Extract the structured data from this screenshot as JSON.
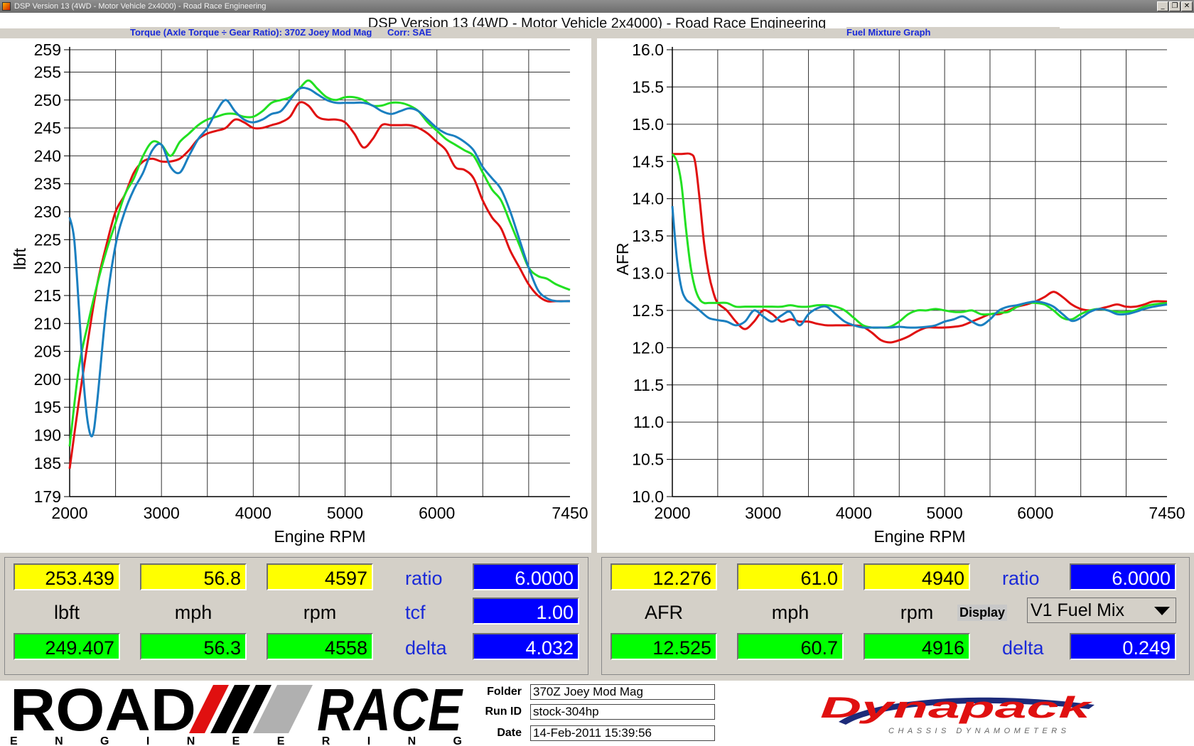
{
  "window": {
    "title": "DSP Version 13 (4WD - Motor Vehicle 2x4000) - Road Race Engineering",
    "heading": "DSP Version 13 (4WD - Motor Vehicle 2x4000) - Road Race Engineering",
    "minimize": "_",
    "restore": "❐",
    "close": "✕"
  },
  "colors": {
    "red": "#e01010",
    "green": "#22e022",
    "blue": "#1a7fc0",
    "panel": "#d4d0c8"
  },
  "chart_data": [
    {
      "type": "line",
      "title": "Torque (Axle Torque ÷ Gear Ratio): 370Z Joey Mod Mag",
      "subtitle": "Corr: SAE",
      "xlabel": "Engine RPM",
      "ylabel": "lbft",
      "xlim": [
        2000,
        7450
      ],
      "ylim": [
        179,
        259
      ],
      "xticks": [
        2000,
        3000,
        4000,
        5000,
        6000,
        7450
      ],
      "yticks": [
        179,
        185,
        190,
        195,
        200,
        205,
        210,
        215,
        220,
        225,
        230,
        235,
        240,
        245,
        250,
        255,
        259
      ],
      "grid": true,
      "legend": "none",
      "series": [
        {
          "color": "#e01010",
          "x": [
            2000,
            2100,
            2200,
            2300,
            2400,
            2500,
            2600,
            2700,
            2800,
            2900,
            3000,
            3100,
            3200,
            3300,
            3400,
            3500,
            3600,
            3700,
            3800,
            3900,
            4000,
            4100,
            4200,
            4300,
            4400,
            4500,
            4600,
            4700,
            4800,
            4900,
            5000,
            5100,
            5200,
            5300,
            5400,
            5500,
            5600,
            5700,
            5800,
            5900,
            6000,
            6100,
            6200,
            6300,
            6400,
            6500,
            6600,
            6700,
            6800,
            6900,
            7000,
            7100,
            7200,
            7300,
            7450
          ],
          "y": [
            184,
            196,
            207,
            217,
            224,
            230,
            233,
            237,
            239,
            239.5,
            239,
            239,
            239.5,
            241,
            243,
            244,
            244.5,
            245,
            246.5,
            246,
            245,
            245,
            245.5,
            246,
            247,
            249.5,
            249,
            247,
            246.5,
            246.5,
            246,
            244,
            241.5,
            243,
            245.5,
            245.5,
            245.5,
            245.5,
            245,
            244,
            242.5,
            241,
            238,
            237.5,
            236,
            232,
            229,
            227,
            223,
            220,
            217,
            215,
            214,
            214,
            214
          ]
        },
        {
          "color": "#22e022",
          "x": [
            2000,
            2100,
            2200,
            2300,
            2400,
            2500,
            2600,
            2700,
            2800,
            2900,
            3000,
            3100,
            3200,
            3300,
            3400,
            3500,
            3600,
            3700,
            3800,
            3900,
            4000,
            4100,
            4200,
            4300,
            4400,
            4500,
            4600,
            4700,
            4800,
            4900,
            5000,
            5100,
            5200,
            5300,
            5400,
            5500,
            5600,
            5700,
            5800,
            5900,
            6000,
            6100,
            6200,
            6300,
            6400,
            6500,
            6600,
            6700,
            6800,
            6900,
            7000,
            7100,
            7200,
            7300,
            7450
          ],
          "y": [
            188,
            202,
            210,
            217,
            223,
            228,
            233,
            236,
            240,
            242.5,
            242,
            240,
            242.5,
            244,
            245.5,
            246.5,
            247,
            247.5,
            247.5,
            247,
            247,
            248,
            249.5,
            250,
            250.5,
            252,
            253.5,
            252,
            250.5,
            250,
            250.5,
            250.5,
            250,
            249,
            249,
            249.5,
            249.5,
            249,
            248,
            246,
            244.5,
            243,
            242,
            241,
            240,
            237,
            234,
            232,
            228,
            224,
            220,
            218.5,
            218,
            217,
            216
          ]
        },
        {
          "color": "#1a7fc0",
          "x": [
            2000,
            2050,
            2100,
            2150,
            2200,
            2250,
            2300,
            2400,
            2500,
            2600,
            2700,
            2800,
            2900,
            3000,
            3100,
            3200,
            3300,
            3400,
            3500,
            3600,
            3700,
            3800,
            3900,
            4000,
            4100,
            4200,
            4300,
            4400,
            4500,
            4600,
            4700,
            4800,
            4900,
            5000,
            5100,
            5200,
            5300,
            5400,
            5500,
            5600,
            5700,
            5800,
            5900,
            6000,
            6100,
            6200,
            6300,
            6400,
            6500,
            6600,
            6700,
            6800,
            6900,
            7000,
            7100,
            7200,
            7300,
            7450
          ],
          "y": [
            229,
            225,
            213,
            200,
            192,
            190,
            196,
            213,
            224,
            230,
            234,
            237,
            241,
            242,
            238,
            237,
            240,
            243,
            245,
            248,
            250,
            248,
            246.5,
            246,
            246.5,
            247.5,
            248,
            250,
            252,
            252,
            251,
            250,
            249.5,
            249.5,
            249.5,
            249.5,
            249,
            248,
            247.5,
            248,
            248.5,
            248,
            246.5,
            245,
            244,
            243.5,
            242.5,
            241,
            238,
            236,
            234,
            230,
            225,
            220,
            216,
            214.5,
            214,
            214
          ]
        }
      ]
    },
    {
      "type": "line",
      "title": "Fuel Mixture Graph",
      "xlabel": "Engine RPM",
      "ylabel": "AFR",
      "xlim": [
        2000,
        7450
      ],
      "ylim": [
        10.0,
        16.0
      ],
      "xticks": [
        2000,
        3000,
        4000,
        5000,
        6000,
        7450
      ],
      "yticks": [
        10.0,
        10.5,
        11.0,
        11.5,
        12.0,
        12.5,
        13.0,
        13.5,
        14.0,
        14.5,
        15.0,
        15.5,
        16.0
      ],
      "grid": true,
      "legend": "none",
      "series": [
        {
          "color": "#e01010",
          "x": [
            2000,
            2100,
            2200,
            2250,
            2300,
            2350,
            2400,
            2450,
            2500,
            2600,
            2700,
            2800,
            2900,
            3000,
            3100,
            3200,
            3300,
            3400,
            3500,
            3600,
            3700,
            3800,
            3900,
            4000,
            4100,
            4200,
            4300,
            4400,
            4500,
            4600,
            4700,
            4800,
            4900,
            5000,
            5100,
            5200,
            5300,
            5400,
            5500,
            5600,
            5700,
            5800,
            5900,
            6000,
            6100,
            6200,
            6300,
            6400,
            6500,
            6600,
            6700,
            6800,
            6900,
            7000,
            7100,
            7200,
            7300,
            7450
          ],
          "y": [
            14.6,
            14.6,
            14.6,
            14.5,
            14.0,
            13.4,
            13.0,
            12.75,
            12.6,
            12.5,
            12.35,
            12.25,
            12.35,
            12.5,
            12.45,
            12.35,
            12.38,
            12.35,
            12.35,
            12.32,
            12.3,
            12.3,
            12.3,
            12.3,
            12.28,
            12.2,
            12.1,
            12.07,
            12.1,
            12.15,
            12.22,
            12.27,
            12.27,
            12.27,
            12.28,
            12.3,
            12.35,
            12.4,
            12.45,
            12.45,
            12.5,
            12.55,
            12.58,
            12.62,
            12.68,
            12.75,
            12.68,
            12.58,
            12.52,
            12.5,
            12.52,
            12.55,
            12.58,
            12.55,
            12.55,
            12.58,
            12.62,
            12.62
          ]
        },
        {
          "color": "#22e022",
          "x": [
            2000,
            2050,
            2100,
            2150,
            2200,
            2250,
            2300,
            2350,
            2400,
            2500,
            2600,
            2700,
            2800,
            2900,
            3000,
            3100,
            3200,
            3300,
            3400,
            3500,
            3600,
            3700,
            3800,
            3900,
            4000,
            4100,
            4200,
            4300,
            4400,
            4500,
            4600,
            4700,
            4800,
            4900,
            5000,
            5100,
            5200,
            5300,
            5400,
            5500,
            5600,
            5700,
            5800,
            5900,
            6000,
            6100,
            6200,
            6300,
            6400,
            6500,
            6600,
            6700,
            6800,
            6900,
            7000,
            7100,
            7200,
            7300,
            7450
          ],
          "y": [
            14.6,
            14.5,
            14.2,
            13.6,
            13.1,
            12.8,
            12.65,
            12.6,
            12.6,
            12.6,
            12.6,
            12.55,
            12.55,
            12.55,
            12.55,
            12.55,
            12.55,
            12.57,
            12.55,
            12.55,
            12.57,
            12.57,
            12.55,
            12.5,
            12.4,
            12.3,
            12.27,
            12.27,
            12.28,
            12.35,
            12.45,
            12.5,
            12.5,
            12.52,
            12.5,
            12.48,
            12.48,
            12.5,
            12.45,
            12.45,
            12.47,
            12.48,
            12.55,
            12.6,
            12.6,
            12.58,
            12.5,
            12.4,
            12.38,
            12.45,
            12.5,
            12.52,
            12.5,
            12.48,
            12.48,
            12.5,
            12.55,
            12.58,
            12.6
          ]
        },
        {
          "color": "#1a7fc0",
          "x": [
            2000,
            2050,
            2100,
            2150,
            2200,
            2300,
            2400,
            2500,
            2600,
            2700,
            2800,
            2900,
            3000,
            3100,
            3200,
            3300,
            3400,
            3500,
            3600,
            3700,
            3800,
            3900,
            4000,
            4100,
            4200,
            4300,
            4400,
            4500,
            4600,
            4700,
            4800,
            4900,
            5000,
            5100,
            5200,
            5300,
            5400,
            5500,
            5600,
            5700,
            5800,
            5900,
            6000,
            6100,
            6200,
            6300,
            6400,
            6500,
            6600,
            6700,
            6800,
            6900,
            7000,
            7100,
            7200,
            7300,
            7450
          ],
          "y": [
            13.9,
            13.2,
            12.8,
            12.65,
            12.6,
            12.5,
            12.4,
            12.37,
            12.35,
            12.3,
            12.35,
            12.5,
            12.42,
            12.35,
            12.43,
            12.48,
            12.3,
            12.45,
            12.53,
            12.55,
            12.45,
            12.35,
            12.3,
            12.27,
            12.27,
            12.27,
            12.27,
            12.28,
            12.27,
            12.27,
            12.28,
            12.3,
            12.35,
            12.38,
            12.42,
            12.35,
            12.3,
            12.38,
            12.5,
            12.55,
            12.57,
            12.6,
            12.62,
            12.6,
            12.55,
            12.45,
            12.36,
            12.4,
            12.48,
            12.52,
            12.5,
            12.45,
            12.45,
            12.48,
            12.52,
            12.55,
            12.58
          ]
        }
      ]
    }
  ],
  "left_readout": {
    "cursor_value": "253.439",
    "cursor_speed": "56.8",
    "cursor_rpm": "4597",
    "unit_value": "lbft",
    "unit_speed": "mph",
    "unit_rpm": "rpm",
    "base_value": "249.407",
    "base_speed": "56.3",
    "base_rpm": "4558",
    "ratio_label": "ratio",
    "ratio": "6.0000",
    "tcf_label": "tcf",
    "tcf": "1.00",
    "delta_label": "delta",
    "delta": "4.032"
  },
  "right_readout": {
    "cursor_value": "12.276",
    "cursor_speed": "61.0",
    "cursor_rpm": "4940",
    "unit_value": "AFR",
    "unit_speed": "mph",
    "unit_rpm": "rpm",
    "base_value": "12.525",
    "base_speed": "60.7",
    "base_rpm": "4916",
    "ratio_label": "ratio",
    "ratio": "6.0000",
    "display_label": "Display",
    "display_value": "V1 Fuel Mix",
    "delta_label": "delta",
    "delta": "0.249"
  },
  "footer": {
    "logo_road": "ROAD",
    "logo_race": "RACE",
    "logo_sub": "E N G I N E E R I N G",
    "folder_label": "Folder",
    "folder": "370Z Joey Mod Mag",
    "runid_label": "Run ID",
    "runid": "stock-304hp",
    "date_label": "Date",
    "date": "14-Feb-2011 15:39:56",
    "brand": "Dynapack",
    "brand_sub": "CHASSIS DYNAMOMETERS"
  }
}
